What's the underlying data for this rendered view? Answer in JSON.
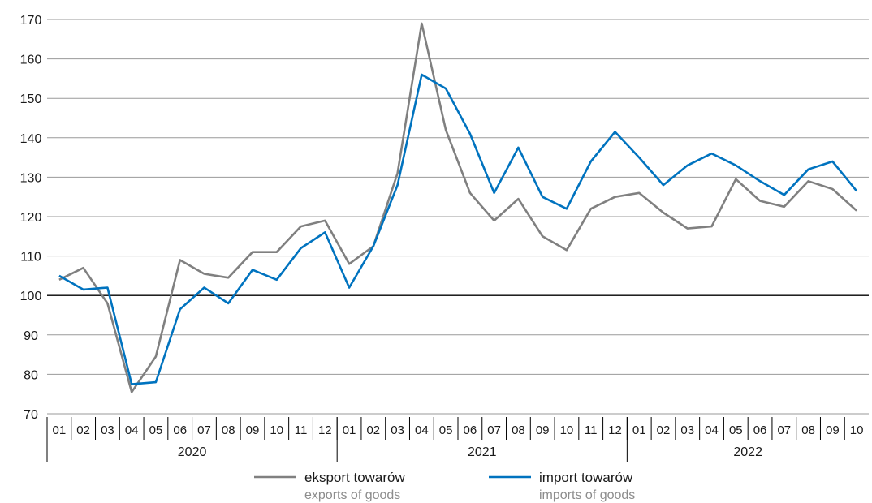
{
  "chart_data": {
    "type": "line",
    "title": "",
    "xlabel": "",
    "ylabel": "",
    "ylim": [
      70,
      170
    ],
    "yticks": [
      70,
      80,
      90,
      100,
      110,
      120,
      130,
      140,
      150,
      160,
      170
    ],
    "grid": true,
    "legend_placement": "bottom-center",
    "months": [
      "01",
      "02",
      "03",
      "04",
      "05",
      "06",
      "07",
      "08",
      "09",
      "10",
      "11",
      "12",
      "01",
      "02",
      "03",
      "04",
      "05",
      "06",
      "07",
      "08",
      "09",
      "10",
      "11",
      "12",
      "01",
      "02",
      "03",
      "04",
      "05",
      "06",
      "07",
      "08",
      "09",
      "10"
    ],
    "years": [
      {
        "label": "2020",
        "count": 12
      },
      {
        "label": "2021",
        "count": 12
      },
      {
        "label": "2022",
        "count": 10
      }
    ],
    "series": [
      {
        "name": "eksport towarów",
        "subname": "exports of goods",
        "color": "#808080",
        "values": [
          104,
          107,
          98,
          75.5,
          84.5,
          109,
          105.5,
          104.5,
          111,
          111,
          117.5,
          119,
          108,
          112.5,
          131,
          169,
          142,
          126,
          119,
          124.5,
          115,
          111.5,
          122,
          125,
          126,
          121,
          117,
          117.5,
          129.5,
          124,
          122.5,
          129,
          127,
          121.5
        ]
      },
      {
        "name": "import towarów",
        "subname": "imports of goods",
        "color": "#0073bf",
        "values": [
          105,
          101.5,
          102,
          77.5,
          78,
          96.5,
          102,
          98,
          106.5,
          104,
          112,
          116,
          102,
          112.5,
          128,
          156,
          152.5,
          141,
          126,
          137.5,
          125,
          122,
          134,
          141.5,
          135,
          128,
          133,
          136,
          133,
          129,
          125.5,
          132,
          134,
          126.5
        ]
      }
    ]
  }
}
